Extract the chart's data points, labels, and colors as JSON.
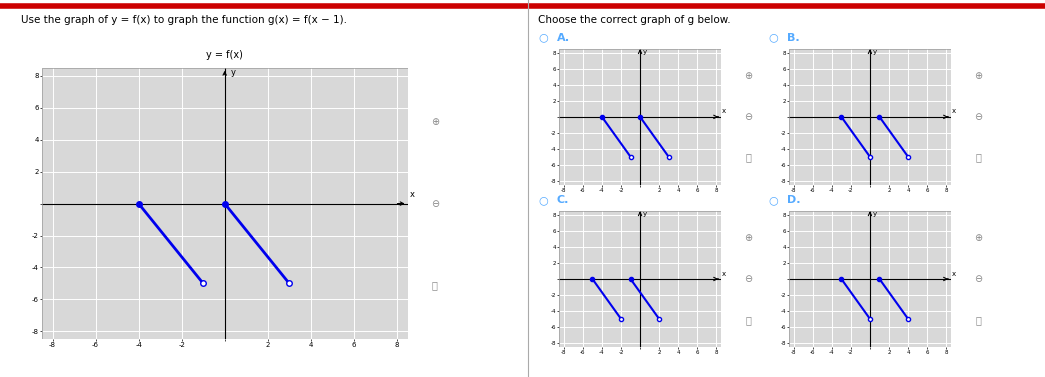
{
  "title_left": "Use the graph of y = f(x) to graph the function g(x) = f(x − 1).",
  "title_right": "Choose the correct graph of g below.",
  "graph_label": "y = f(x)",
  "line_color": "#0000ee",
  "bg_color": "#ffffff",
  "grid_bg": "#d8d8d8",
  "grid_line_color": "#ffffff",
  "axis_color": "#333333",
  "radio_color": "#55aaff",
  "label_color": "#55aaff",
  "main_seg1": [
    -4,
    0,
    -1,
    -5
  ],
  "main_seg2": [
    0,
    0,
    3,
    -5
  ],
  "optA_seg1": [
    -4,
    0,
    -1,
    -5
  ],
  "optA_seg2": [
    0,
    0,
    3,
    -5
  ],
  "optB_seg1": [
    -3,
    0,
    0,
    -5
  ],
  "optB_seg2": [
    1,
    0,
    4,
    -5
  ],
  "optC_seg1": [
    -5,
    0,
    -2,
    -5
  ],
  "optC_seg2": [
    -1,
    0,
    2,
    -5
  ],
  "optD_seg1": [
    -3,
    0,
    0,
    -5
  ],
  "optD_seg2": [
    1,
    0,
    4,
    -5
  ],
  "divider_color": "#aaaaaa",
  "top_bar_color": "#cc0000"
}
